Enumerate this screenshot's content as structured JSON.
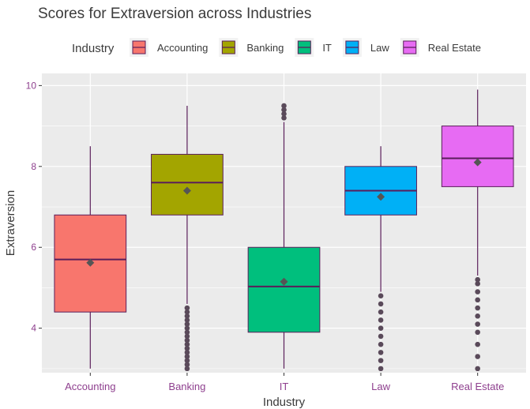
{
  "chart_data": {
    "type": "box",
    "title": "Scores for Extraversion across Industries",
    "xlabel": "Industry",
    "ylabel": "Extraversion",
    "ylim": [
      2.9,
      10.3
    ],
    "yticks": [
      4,
      6,
      8,
      10
    ],
    "grid": true,
    "legend": {
      "title": "Industry",
      "position": "top"
    },
    "colors": {
      "outline": "#5a1e5a",
      "mean_marker": "#555555",
      "panel": "#ebebeb",
      "gridline": "#ffffff",
      "tick_text": "#8e3f8e"
    },
    "categories": [
      "Accounting",
      "Banking",
      "IT",
      "Law",
      "Real Estate"
    ],
    "series": [
      {
        "name": "Accounting",
        "color": "#F8766D",
        "whisker_low": 3.0,
        "q1": 4.4,
        "median": 5.7,
        "q3": 6.8,
        "whisker_high": 8.5,
        "mean": 5.62,
        "outliers": []
      },
      {
        "name": "Banking",
        "color": "#A3A500",
        "whisker_low": 4.6,
        "q1": 6.8,
        "median": 7.6,
        "q3": 8.3,
        "whisker_high": 9.5,
        "mean": 7.4,
        "outliers": [
          3.0,
          3.1,
          3.2,
          3.3,
          3.4,
          3.5,
          3.6,
          3.7,
          3.8,
          3.9,
          4.0,
          4.1,
          4.2,
          4.3,
          4.4,
          4.5
        ]
      },
      {
        "name": "IT",
        "color": "#00BF7D",
        "whisker_low": 3.0,
        "q1": 3.9,
        "median": 5.03,
        "q3": 6.0,
        "whisker_high": 9.1,
        "mean": 5.15,
        "outliers": [
          9.2,
          9.3,
          9.4,
          9.5
        ]
      },
      {
        "name": "Law",
        "color": "#00B0F6",
        "whisker_low": 4.9,
        "q1": 6.8,
        "median": 7.4,
        "q3": 8.0,
        "whisker_high": 8.5,
        "mean": 7.25,
        "outliers": [
          3.0,
          3.2,
          3.4,
          3.6,
          3.8,
          4.0,
          4.2,
          4.4,
          4.6,
          4.8
        ]
      },
      {
        "name": "Real Estate",
        "color": "#E76BF3",
        "whisker_low": 5.3,
        "q1": 7.5,
        "median": 8.2,
        "q3": 9.0,
        "whisker_high": 9.9,
        "mean": 8.1,
        "outliers": [
          3.0,
          3.3,
          3.6,
          3.9,
          4.1,
          4.3,
          4.5,
          4.7,
          4.9,
          5.1,
          5.2
        ]
      }
    ]
  }
}
